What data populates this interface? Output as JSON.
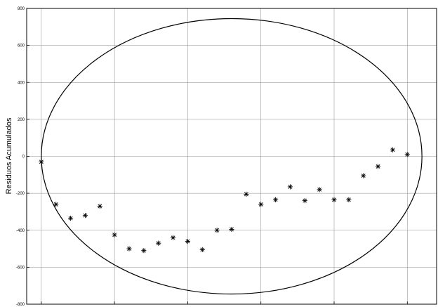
{
  "chart_data": {
    "type": "scatter",
    "title": "",
    "xlabel": "",
    "ylabel": "Residuos Acumulados",
    "ylim": [
      -800,
      800
    ],
    "yticks": [
      -800,
      -600,
      -400,
      -200,
      0,
      200,
      400,
      600,
      800
    ],
    "xlim": [
      0,
      28
    ],
    "grid": true,
    "marker": "asterisk",
    "series": [
      {
        "x": [
          1,
          2,
          3,
          4,
          5,
          6,
          7,
          8,
          9,
          10,
          11,
          12,
          13,
          14,
          15,
          16,
          17,
          18,
          19,
          20,
          21,
          22,
          23,
          24,
          25,
          26,
          27
        ],
        "values": [
          -30,
          -260,
          -335,
          -320,
          -270,
          -425,
          -500,
          -510,
          -470,
          -440,
          -460,
          -505,
          -400,
          -395,
          -205,
          -260,
          -235,
          -165,
          -240,
          -180,
          -235,
          -235,
          -105,
          -55,
          35,
          10,
          null
        ]
      }
    ],
    "ellipse": {
      "center_x": 14,
      "center_y": 0,
      "radius_x": 13,
      "radius_y": 745
    }
  }
}
